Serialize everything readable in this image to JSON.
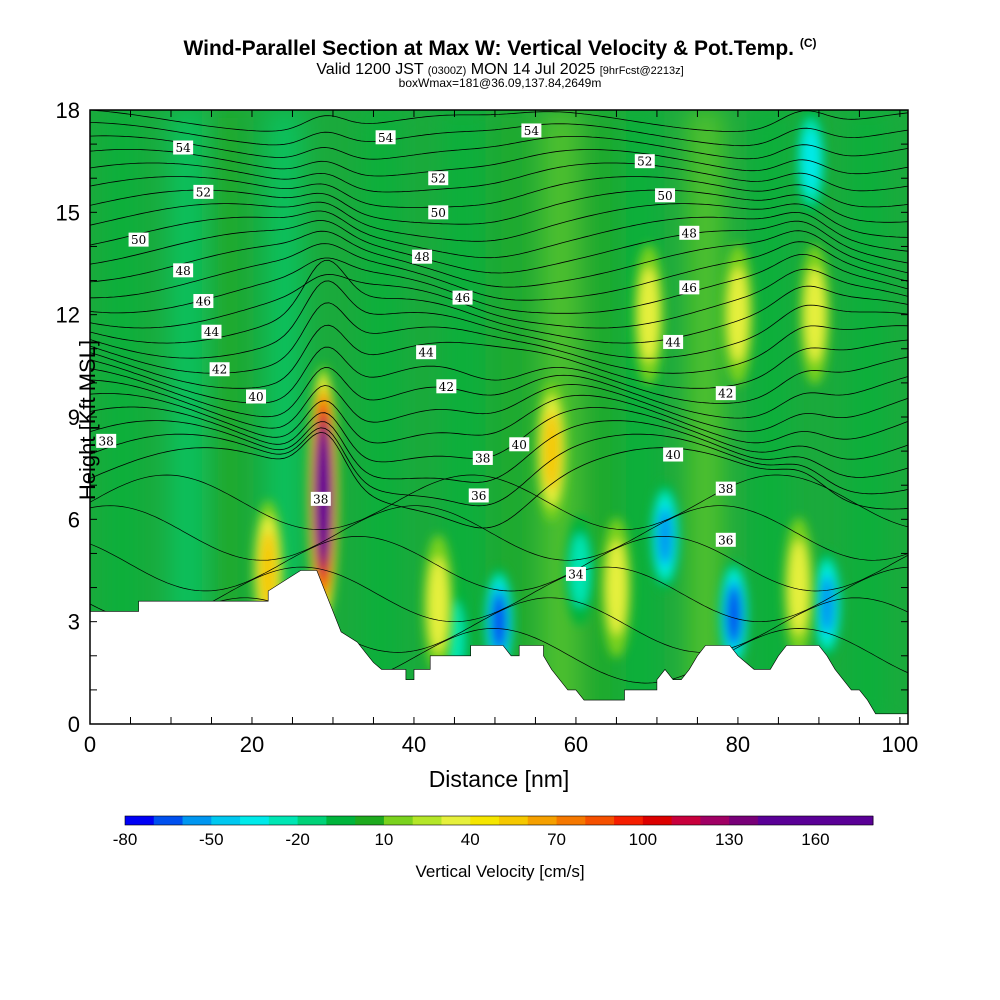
{
  "title": {
    "main": "Wind-Parallel Section at Max W: Vertical Velocity & Pot.Temp.",
    "copyright": "(C)",
    "valid_prefix": "Valid 1200 JST",
    "valid_utc": "(0300Z)",
    "valid_date": "MON 14 Jul 2025",
    "forecast": "[9hrFcst@2213z]",
    "box_info": "boxWmax=181@36.09,137.84,2649m"
  },
  "colors": {
    "velocity_scale": [
      "#0000f5",
      "#0050ef",
      "#0096f0",
      "#00c8f0",
      "#00eaea",
      "#00e6b4",
      "#00d278",
      "#00b43c",
      "#1eaa1e",
      "#7ad21e",
      "#b4e628",
      "#e6f03c",
      "#f5e600",
      "#f5c800",
      "#f5a000",
      "#f57800",
      "#f55000",
      "#f51e00",
      "#dc0000",
      "#c8003c",
      "#a00064",
      "#780078",
      "#5a0096"
    ]
  },
  "chart_data": {
    "type": "heatmap",
    "xlabel": "Distance [nm]",
    "ylabel": "Height [Kft MSL]",
    "xlim": [
      0,
      101
    ],
    "ylim": [
      0,
      18
    ],
    "xticks": [
      0,
      20,
      40,
      60,
      80,
      100
    ],
    "yticks": [
      0,
      3,
      6,
      9,
      12,
      15,
      18
    ],
    "colorbar": {
      "label": "Vertical Velocity [cm/s]",
      "tick_labels": [
        -80,
        -50,
        -20,
        10,
        40,
        70,
        100,
        130,
        160
      ],
      "min": -80,
      "max": 180,
      "step": 10
    },
    "terrain": [
      [
        0,
        3.3
      ],
      [
        6,
        3.3
      ],
      [
        6,
        3.6
      ],
      [
        22,
        3.6
      ],
      [
        22,
        3.9
      ],
      [
        26,
        4.5
      ],
      [
        28,
        4.5
      ],
      [
        29,
        3.9
      ],
      [
        30,
        3.3
      ],
      [
        31,
        2.7
      ],
      [
        33,
        2.4
      ],
      [
        34,
        2.1
      ],
      [
        35,
        1.8
      ],
      [
        36,
        1.6
      ],
      [
        39,
        1.6
      ],
      [
        39,
        1.3
      ],
      [
        40,
        1.3
      ],
      [
        40,
        1.6
      ],
      [
        42,
        1.6
      ],
      [
        42,
        2.0
      ],
      [
        47,
        2.0
      ],
      [
        47,
        2.3
      ],
      [
        51,
        2.3
      ],
      [
        52,
        2.0
      ],
      [
        53,
        2.0
      ],
      [
        53,
        2.3
      ],
      [
        56,
        2.3
      ],
      [
        56,
        2.0
      ],
      [
        57,
        1.6
      ],
      [
        58,
        1.3
      ],
      [
        59,
        1.0
      ],
      [
        60,
        1.0
      ],
      [
        61,
        0.7
      ],
      [
        66,
        0.7
      ],
      [
        66,
        1.0
      ],
      [
        70,
        1.0
      ],
      [
        70,
        1.3
      ],
      [
        71,
        1.6
      ],
      [
        72,
        1.3
      ],
      [
        73,
        1.3
      ],
      [
        74,
        1.6
      ],
      [
        75,
        2.0
      ],
      [
        76,
        2.3
      ],
      [
        79,
        2.3
      ],
      [
        80,
        2.0
      ],
      [
        81,
        1.8
      ],
      [
        82,
        1.6
      ],
      [
        84,
        1.6
      ],
      [
        85,
        2.0
      ],
      [
        86,
        2.3
      ],
      [
        90,
        2.3
      ],
      [
        91,
        2.0
      ],
      [
        92,
        1.6
      ],
      [
        93,
        1.3
      ],
      [
        94,
        1.0
      ],
      [
        95,
        1.0
      ],
      [
        96,
        0.7
      ],
      [
        97,
        0.3
      ],
      [
        101,
        0.3
      ]
    ],
    "updrafts": [
      {
        "x": 28.8,
        "y": 6.7,
        "value": 170
      },
      {
        "x": 22.0,
        "y": 4.5,
        "value": 55
      },
      {
        "x": 43.0,
        "y": 3.5,
        "value": 45
      },
      {
        "x": 57.0,
        "y": 8.0,
        "value": 50
      },
      {
        "x": 65.0,
        "y": 4.0,
        "value": 45
      },
      {
        "x": 87.5,
        "y": 4.0,
        "value": 45
      },
      {
        "x": 89.5,
        "y": 12.0,
        "value": 40
      },
      {
        "x": 69.0,
        "y": 12.0,
        "value": 35
      },
      {
        "x": 80.0,
        "y": 12.0,
        "value": 35
      }
    ],
    "downdrafts": [
      {
        "x": 50.5,
        "y": 3.0,
        "value": -75
      },
      {
        "x": 79.5,
        "y": 3.2,
        "value": -80
      },
      {
        "x": 71.0,
        "y": 5.5,
        "value": -55
      },
      {
        "x": 91.0,
        "y": 3.5,
        "value": -55
      },
      {
        "x": 89.0,
        "y": 16.5,
        "value": -40
      },
      {
        "x": 60.5,
        "y": 4.5,
        "value": -35
      },
      {
        "x": 45.0,
        "y": 2.5,
        "value": -30
      }
    ],
    "contour_labels": [
      {
        "text": "54",
        "x": 11.5,
        "y": 16.9
      },
      {
        "text": "54",
        "x": 36.5,
        "y": 17.2
      },
      {
        "text": "54",
        "x": 54.5,
        "y": 17.4
      },
      {
        "text": "52",
        "x": 14.0,
        "y": 15.6
      },
      {
        "text": "52",
        "x": 43.0,
        "y": 16.0
      },
      {
        "text": "52",
        "x": 68.5,
        "y": 16.5
      },
      {
        "text": "50",
        "x": 6.0,
        "y": 14.2
      },
      {
        "text": "50",
        "x": 43.0,
        "y": 15.0
      },
      {
        "text": "50",
        "x": 71.0,
        "y": 15.5
      },
      {
        "text": "48",
        "x": 11.5,
        "y": 13.3
      },
      {
        "text": "48",
        "x": 41.0,
        "y": 13.7
      },
      {
        "text": "48",
        "x": 74.0,
        "y": 14.4
      },
      {
        "text": "46",
        "x": 14.0,
        "y": 12.4
      },
      {
        "text": "46",
        "x": 46.0,
        "y": 12.5
      },
      {
        "text": "46",
        "x": 74.0,
        "y": 12.8
      },
      {
        "text": "44",
        "x": 15.0,
        "y": 11.5
      },
      {
        "text": "44",
        "x": 41.5,
        "y": 10.9
      },
      {
        "text": "44",
        "x": 72.0,
        "y": 11.2
      },
      {
        "text": "42",
        "x": 16.0,
        "y": 10.4
      },
      {
        "text": "42",
        "x": 44.0,
        "y": 9.9
      },
      {
        "text": "42",
        "x": 78.5,
        "y": 9.7
      },
      {
        "text": "40",
        "x": 20.5,
        "y": 9.6
      },
      {
        "text": "40",
        "x": 53.0,
        "y": 8.2
      },
      {
        "text": "40",
        "x": 72.0,
        "y": 7.9
      },
      {
        "text": "38",
        "x": 2.0,
        "y": 8.3
      },
      {
        "text": "38",
        "x": 28.5,
        "y": 6.6
      },
      {
        "text": "38",
        "x": 48.5,
        "y": 7.8
      },
      {
        "text": "38",
        "x": 78.5,
        "y": 6.9
      },
      {
        "text": "36",
        "x": 48.0,
        "y": 6.7
      },
      {
        "text": "36",
        "x": 78.5,
        "y": 5.4
      },
      {
        "text": "34",
        "x": 60.0,
        "y": 4.4
      }
    ]
  }
}
